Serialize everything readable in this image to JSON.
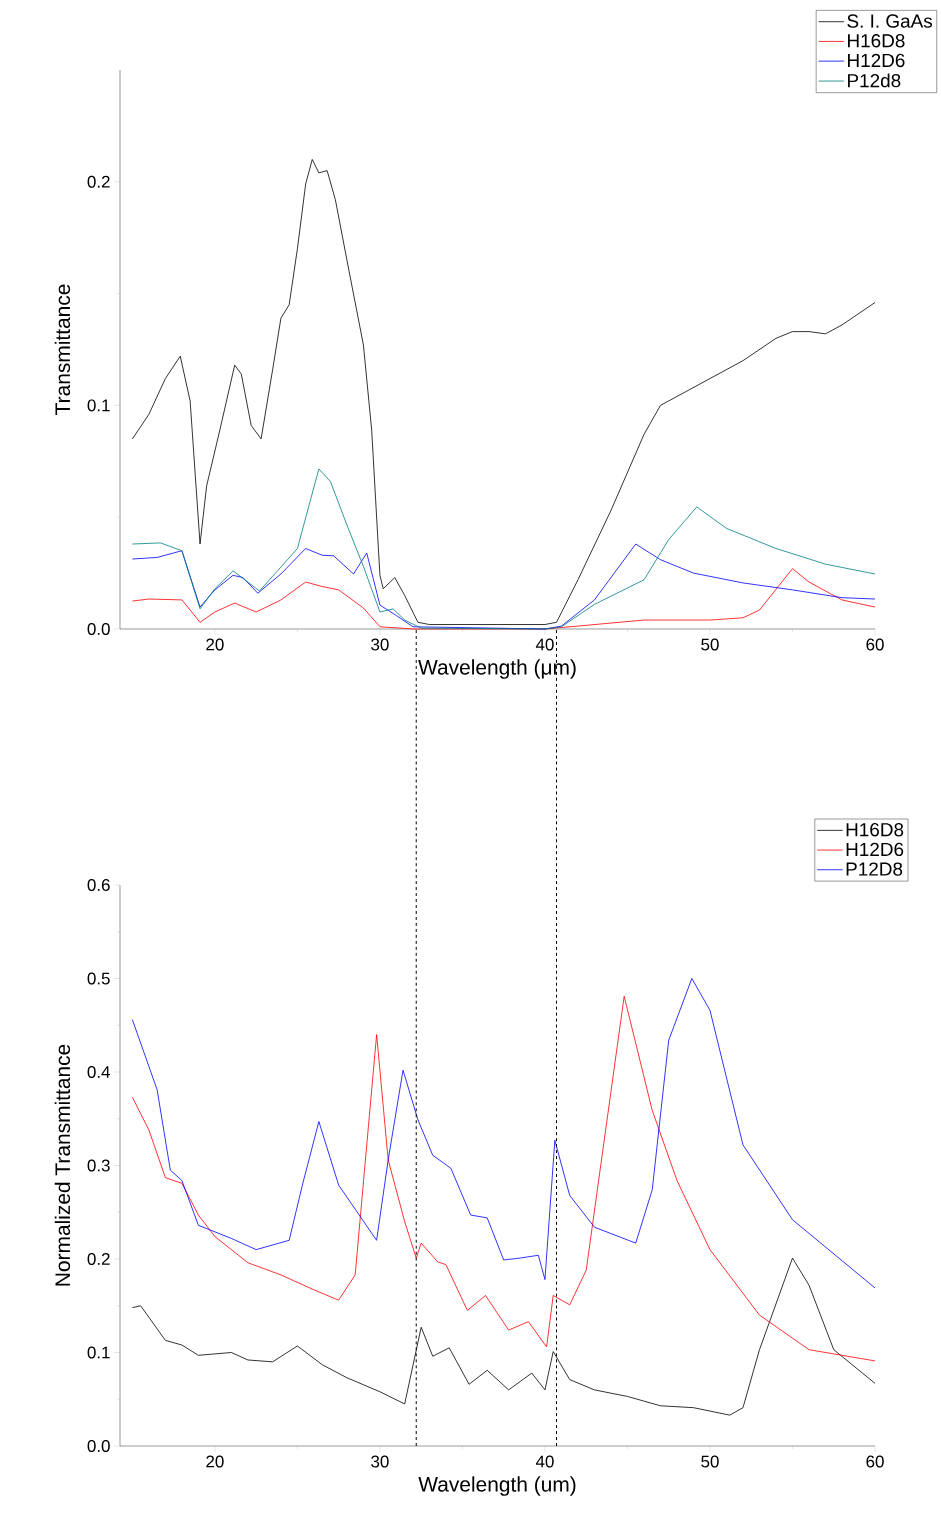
{
  "chart_data": [
    {
      "type": "line",
      "xlabel": "Wavelength (μm)",
      "ylabel": "Transmittance",
      "xlim": [
        14.25,
        60
      ],
      "ylim": [
        0,
        0.25
      ],
      "xticks": [
        20,
        30,
        40,
        50,
        60
      ],
      "yticks": [
        {
          "value": 0,
          "label": "0.0"
        },
        {
          "value": 0.1,
          "label": "0.1"
        },
        {
          "value": 0.2,
          "label": "0.2"
        }
      ],
      "legend": "top right",
      "grid": false,
      "series": [
        {
          "name": "S. I. GaAs",
          "color": "#000000",
          "x": [
            15,
            16,
            17,
            17.9,
            18.5,
            19.1,
            19.5,
            20.3,
            21.2,
            21.6,
            22.2,
            22.8,
            23.5,
            24,
            24.5,
            25,
            25.5,
            25.9,
            26.3,
            26.8,
            27.3,
            28,
            29,
            29.5,
            30,
            30.2,
            30.9,
            31.5,
            32.3,
            33,
            40,
            40.7,
            42,
            44,
            46,
            47,
            48,
            50,
            52,
            54,
            55,
            56,
            57,
            58,
            60
          ],
          "values": [
            0.085,
            0.096,
            0.112,
            0.122,
            0.102,
            0.038,
            0.064,
            0.089,
            0.118,
            0.114,
            0.091,
            0.085,
            0.116,
            0.139,
            0.145,
            0.17,
            0.199,
            0.21,
            0.204,
            0.205,
            0.192,
            0.165,
            0.127,
            0.089,
            0.024,
            0.018,
            0.023,
            0.015,
            0.003,
            0.002,
            0.002,
            0.003,
            0.022,
            0.053,
            0.087,
            0.1,
            0.104,
            0.112,
            0.12,
            0.13,
            0.133,
            0.133,
            0.132,
            0.136,
            0.146
          ]
        },
        {
          "name": "H16D8",
          "color": "#ff0000",
          "x": [
            15,
            16,
            18,
            19.1,
            20,
            21.2,
            22.5,
            24,
            25.5,
            26.5,
            27.5,
            29,
            30,
            32,
            40,
            42,
            46,
            50,
            52,
            53,
            55,
            56,
            58,
            60
          ],
          "values": [
            0.0125,
            0.0134,
            0.013,
            0.003,
            0.0076,
            0.0116,
            0.0076,
            0.013,
            0.021,
            0.019,
            0.0175,
            0.0094,
            0.001,
            0,
            0,
            0.0013,
            0.004,
            0.004,
            0.005,
            0.0085,
            0.027,
            0.021,
            0.013,
            0.0098
          ]
        },
        {
          "name": "H12D6",
          "color": "#0000ff",
          "x": [
            15,
            16.5,
            18,
            19.1,
            20,
            21.1,
            21.7,
            22.6,
            24,
            25.5,
            26.5,
            27.2,
            28.4,
            29.2,
            30,
            31,
            32,
            40,
            41,
            43,
            45.5,
            47,
            49,
            52,
            55,
            58,
            60
          ],
          "values": [
            0.0313,
            0.032,
            0.035,
            0.0098,
            0.0175,
            0.024,
            0.023,
            0.016,
            0.0246,
            0.036,
            0.033,
            0.0327,
            0.0246,
            0.034,
            0.0107,
            0.006,
            0.001,
            0,
            0.0013,
            0.013,
            0.038,
            0.031,
            0.025,
            0.0206,
            0.0175,
            0.014,
            0.0134
          ]
        },
        {
          "name": "P12d8",
          "color": "#008080",
          "x": [
            15,
            16.7,
            18,
            19.1,
            20,
            21.1,
            22.7,
            24,
            25,
            26.3,
            27,
            28,
            29,
            30,
            30.8,
            31.5,
            32.5,
            40,
            41,
            43,
            46,
            47.5,
            49.2,
            51,
            54,
            57,
            60
          ],
          "values": [
            0.038,
            0.0385,
            0.035,
            0.009,
            0.018,
            0.026,
            0.017,
            0.0277,
            0.036,
            0.0716,
            0.066,
            0.0465,
            0.028,
            0.0076,
            0.009,
            0.004,
            0.0004,
            0,
            0.001,
            0.011,
            0.022,
            0.04,
            0.0546,
            0.045,
            0.036,
            0.029,
            0.0246
          ]
        }
      ]
    },
    {
      "type": "line",
      "xlabel": "Wavelength (um)",
      "ylabel": "Normalized Transmittance",
      "xlim": [
        14.25,
        60
      ],
      "ylim": [
        0,
        0.6
      ],
      "xticks": [
        20,
        30,
        40,
        50,
        60
      ],
      "yticks": [
        {
          "value": 0,
          "label": "0.0"
        },
        {
          "value": 0.1,
          "label": "0.1"
        },
        {
          "value": 0.2,
          "label": "0.2"
        },
        {
          "value": 0.3,
          "label": "0.3"
        },
        {
          "value": 0.4,
          "label": "0.4"
        },
        {
          "value": 0.5,
          "label": "0.5"
        },
        {
          "value": 0.6,
          "label": "0.6"
        }
      ],
      "legend": "top right",
      "grid": false,
      "ref_lines": [
        {
          "axis": "x",
          "value": 32.2,
          "line_style": "dashed",
          "color": "#000000"
        },
        {
          "axis": "x",
          "value": 40.7,
          "line_style": "dashed",
          "color": "#000000"
        }
      ],
      "series": [
        {
          "name": "H16D8",
          "color": "#000000",
          "x": [
            15,
            15.5,
            17,
            18,
            19,
            21,
            22,
            23.5,
            25,
            26.5,
            28,
            30,
            31.5,
            32.5,
            33.2,
            34.2,
            35.4,
            36.5,
            37.8,
            39.2,
            40,
            40.5,
            41.5,
            43,
            45,
            47,
            49,
            51.2,
            52,
            53,
            55,
            56,
            57.5,
            60
          ],
          "values": [
            0.148,
            0.15,
            0.113,
            0.108,
            0.097,
            0.1,
            0.092,
            0.09,
            0.107,
            0.087,
            0.073,
            0.058,
            0.045,
            0.127,
            0.096,
            0.105,
            0.066,
            0.081,
            0.06,
            0.078,
            0.06,
            0.101,
            0.071,
            0.06,
            0.053,
            0.043,
            0.041,
            0.033,
            0.041,
            0.103,
            0.201,
            0.172,
            0.103,
            0.067
          ]
        },
        {
          "name": "H12D6",
          "color": "#ff0000",
          "x": [
            15,
            16,
            17,
            18,
            19,
            20,
            22,
            24,
            26,
            27.5,
            28.5,
            29.8,
            30.5,
            31.5,
            32.2,
            32.5,
            33.5,
            34,
            35.3,
            36.4,
            37.8,
            39,
            40.1,
            40.5,
            41.5,
            42.5,
            44.8,
            46.5,
            48,
            50,
            53,
            56,
            60
          ],
          "values": [
            0.373,
            0.338,
            0.287,
            0.281,
            0.247,
            0.224,
            0.196,
            0.183,
            0.167,
            0.156,
            0.183,
            0.44,
            0.306,
            0.24,
            0.201,
            0.217,
            0.197,
            0.194,
            0.145,
            0.161,
            0.124,
            0.133,
            0.106,
            0.161,
            0.151,
            0.188,
            0.481,
            0.359,
            0.284,
            0.21,
            0.14,
            0.103,
            0.091
          ]
        },
        {
          "name": "P12D8",
          "color": "#0000ff",
          "x": [
            15,
            16.5,
            17.3,
            18,
            19,
            21,
            22.5,
            24.5,
            25.3,
            26.3,
            27.5,
            29.8,
            30.5,
            31.4,
            32.3,
            33.2,
            34.3,
            35.5,
            36.5,
            37.5,
            38.5,
            39.6,
            40,
            40.6,
            41.5,
            43,
            45.5,
            46.5,
            47.5,
            48.9,
            50,
            52,
            55,
            60
          ],
          "values": [
            0.456,
            0.381,
            0.295,
            0.284,
            0.236,
            0.222,
            0.21,
            0.22,
            0.279,
            0.347,
            0.279,
            0.22,
            0.306,
            0.402,
            0.349,
            0.311,
            0.297,
            0.247,
            0.244,
            0.199,
            0.201,
            0.204,
            0.178,
            0.327,
            0.268,
            0.234,
            0.217,
            0.274,
            0.434,
            0.5,
            0.466,
            0.322,
            0.242,
            0.169
          ]
        }
      ]
    }
  ]
}
